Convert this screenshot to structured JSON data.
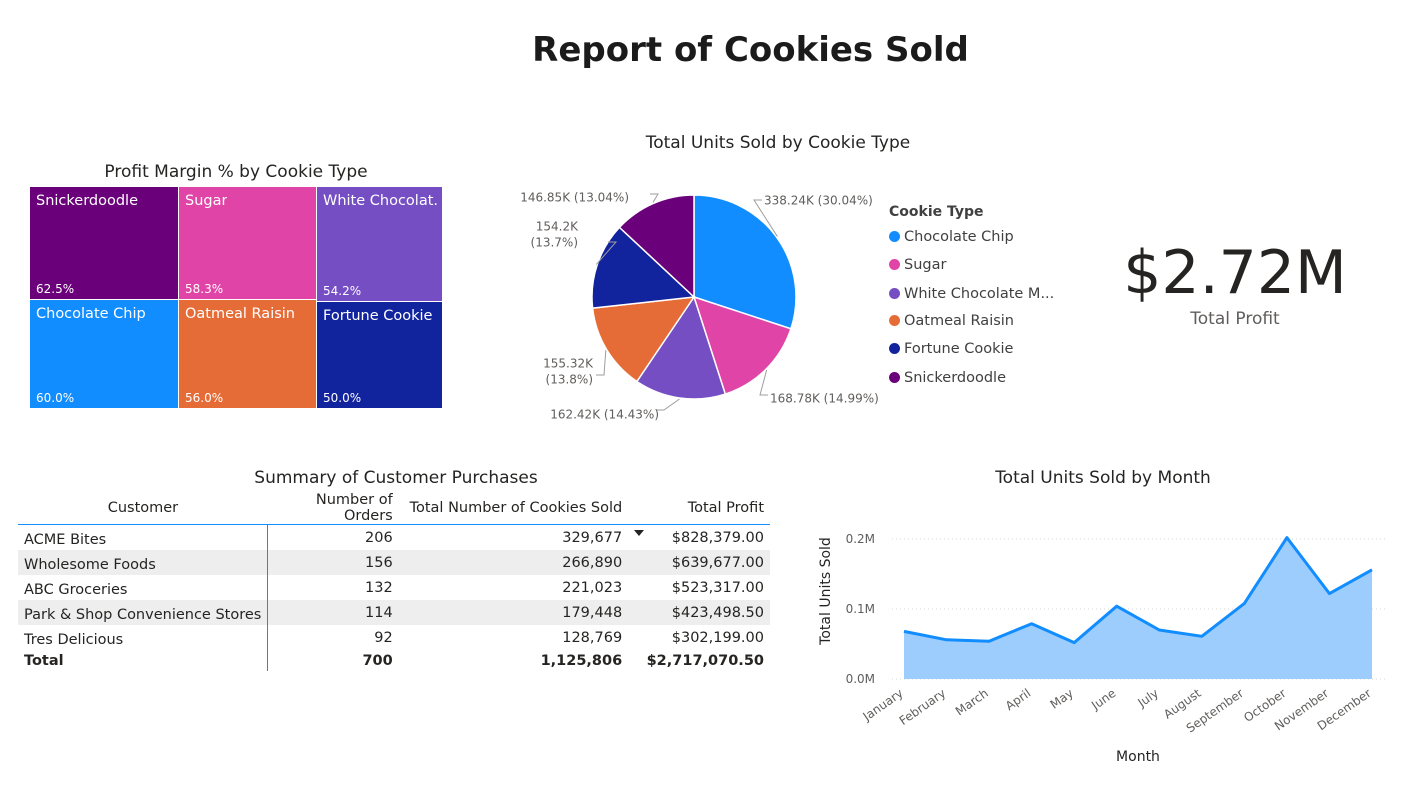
{
  "report_title": "Report of Cookies Sold",
  "colors": {
    "Chocolate Chip": "#118dff",
    "Sugar": "#e044a7",
    "White Chocolate Macadamia": "#744ec2",
    "Oatmeal Raisin": "#e66c37",
    "Fortune Cookie": "#12239e",
    "Snickerdoodle": "#6b007b"
  },
  "chart_data": [
    {
      "type": "treemap",
      "title": "Profit Margin % by Cookie Type",
      "items": [
        {
          "name": "Snickerdoodle",
          "label": "Snickerdoodle",
          "value_label": "62.5%",
          "value": 62.5
        },
        {
          "name": "Sugar",
          "label": "Sugar",
          "value_label": "58.3%",
          "value": 58.3
        },
        {
          "name": "White Chocolate Macadamia",
          "label": "White Chocolat...",
          "value_label": "54.2%",
          "value": 54.2
        },
        {
          "name": "Chocolate Chip",
          "label": "Chocolate Chip",
          "value_label": "60.0%",
          "value": 60.0
        },
        {
          "name": "Oatmeal Raisin",
          "label": "Oatmeal Raisin",
          "value_label": "56.0%",
          "value": 56.0
        },
        {
          "name": "Fortune Cookie",
          "label": "Fortune Cookie",
          "value_label": "50.0%",
          "value": 50.0
        }
      ]
    },
    {
      "type": "pie",
      "title": "Total Units Sold by Cookie Type",
      "legend_title": "Cookie Type",
      "slices": [
        {
          "name": "Chocolate Chip",
          "legend_label": "Chocolate Chip",
          "value": 338240,
          "label": "338.24K (30.04%)"
        },
        {
          "name": "Sugar",
          "legend_label": "Sugar",
          "value": 168780,
          "label": "168.78K (14.99%)"
        },
        {
          "name": "White Chocolate Macadamia",
          "legend_label": "White Chocolate M...",
          "value": 162420,
          "label": "162.42K (14.43%)"
        },
        {
          "name": "Oatmeal Raisin",
          "legend_label": "Oatmeal Raisin",
          "value": 155320,
          "label_line1": "155.32K",
          "label_line2": "(13.8%)"
        },
        {
          "name": "Fortune Cookie",
          "legend_label": "Fortune Cookie",
          "value": 154200,
          "label_line1": "154.2K",
          "label_line2": "(13.7%)"
        },
        {
          "name": "Snickerdoodle",
          "legend_label": "Snickerdoodle",
          "value": 146850,
          "label": "146.85K (13.04%)"
        }
      ]
    },
    {
      "type": "area",
      "title": "Total Units Sold by Month",
      "xlabel": "Month",
      "ylabel": "Total Units Sold",
      "ylim": [
        0,
        200000
      ],
      "yticks": [
        0,
        100000,
        200000
      ],
      "ytick_labels": [
        "0.0M",
        "0.1M",
        "0.2M"
      ],
      "categories": [
        "January",
        "February",
        "March",
        "April",
        "May",
        "June",
        "July",
        "August",
        "September",
        "October",
        "November",
        "December"
      ],
      "values": [
        68000,
        56000,
        54000,
        79000,
        52000,
        104000,
        70000,
        61000,
        108000,
        202000,
        122000,
        156000
      ],
      "grid": true
    },
    {
      "type": "table",
      "title": "Summary of Customer Purchases",
      "columns": [
        "Customer",
        "Number of Orders",
        "Total Number of Cookies Sold",
        "Total Profit"
      ],
      "rows": [
        [
          "ACME Bites",
          "206",
          "329,677",
          "$828,379.00"
        ],
        [
          "Wholesome Foods",
          "156",
          "266,890",
          "$639,677.00"
        ],
        [
          "ABC Groceries",
          "132",
          "221,023",
          "$523,317.00"
        ],
        [
          "Park & Shop Convenience Stores",
          "114",
          "179,448",
          "$423,498.50"
        ],
        [
          "Tres Delicious",
          "92",
          "128,769",
          "$302,199.00"
        ]
      ],
      "total": [
        "Total",
        "700",
        "1,125,806",
        "$2,717,070.50"
      ]
    }
  ],
  "card": {
    "value": "$2.72M",
    "label": "Total Profit"
  }
}
